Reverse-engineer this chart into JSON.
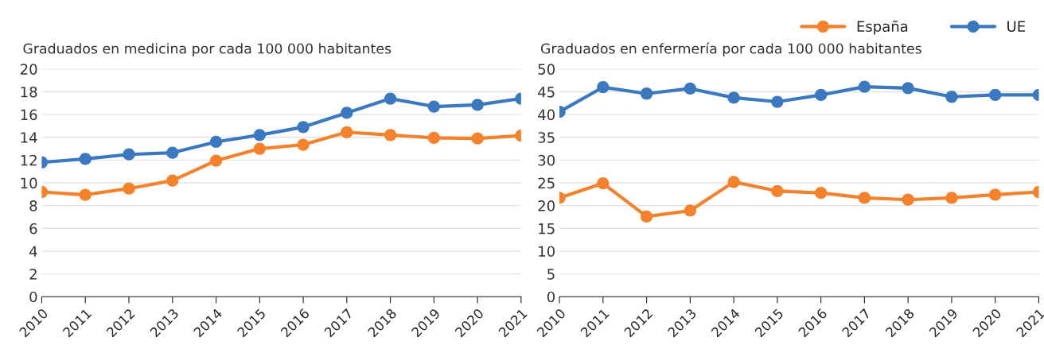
{
  "chart_data": [
    {
      "type": "line",
      "title": "Graduados en medicina por cada 100 000 habitantes",
      "categories": [
        "2010",
        "2011",
        "2012",
        "2013",
        "2014",
        "2015",
        "2016",
        "2017",
        "2018",
        "2019",
        "2020",
        "2021"
      ],
      "series": [
        {
          "color": "#f5822a",
          "values": [
            9.2,
            8.95,
            9.5,
            10.2,
            11.95,
            13.0,
            13.35,
            14.45,
            14.2,
            13.95,
            13.9,
            14.15
          ]
        },
        {
          "color": "#3a78c0",
          "values": [
            11.8,
            12.1,
            12.5,
            12.65,
            13.6,
            14.2,
            14.9,
            16.15,
            17.4,
            16.7,
            16.85,
            17.4
          ]
        }
      ],
      "ylim": [
        0,
        20
      ],
      "yticks": [
        0,
        2,
        4,
        6,
        8,
        10,
        12,
        14,
        16,
        18,
        20
      ],
      "grid": "y",
      "marker": "circle",
      "line_style": "solid"
    },
    {
      "type": "line",
      "title": "Graduados en enfermería por cada 100 000 habitantes",
      "categories": [
        "2010",
        "2011",
        "2012",
        "2013",
        "2014",
        "2015",
        "2016",
        "2017",
        "2018",
        "2019",
        "2020",
        "2021"
      ],
      "series": [
        {
          "name": "España",
          "color": "#f5822a",
          "values": [
            21.7,
            24.9,
            17.6,
            18.9,
            25.2,
            23.2,
            22.8,
            21.7,
            21.3,
            21.7,
            22.4,
            23.0
          ]
        },
        {
          "name": "UE",
          "color": "#3a78c0",
          "values": [
            40.6,
            46.0,
            44.6,
            45.7,
            43.7,
            42.8,
            44.3,
            46.1,
            45.8,
            43.9,
            44.3,
            44.3
          ]
        }
      ],
      "ylim": [
        0,
        50
      ],
      "yticks": [
        0,
        5,
        10,
        15,
        20,
        25,
        30,
        35,
        40,
        45,
        50
      ],
      "grid": "y",
      "marker": "circle",
      "line_style": "solid",
      "legend": "top right"
    }
  ]
}
